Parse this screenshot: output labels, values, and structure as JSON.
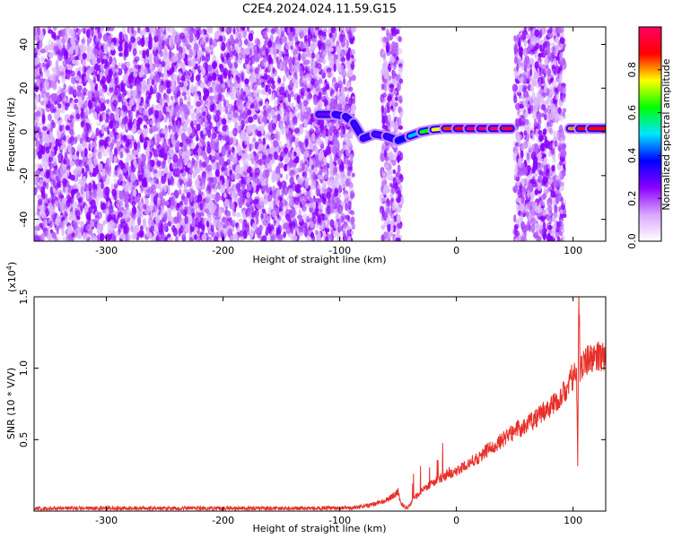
{
  "title": "C2E4.2024.024.11.59.G15",
  "chart_data": [
    {
      "type": "heatmap",
      "xlabel": "Height of straight line (km)",
      "ylabel": "Frequency (Hz)",
      "xlim": [
        -362,
        128
      ],
      "ylim": [
        -50,
        48
      ],
      "xticks": [
        -300,
        -200,
        -100,
        0,
        100
      ],
      "xtick_labels": [
        "-300",
        "-200",
        "-100",
        "0",
        "100"
      ],
      "yticks": [
        -40,
        -20,
        0,
        20,
        40
      ],
      "ytick_labels": [
        "-40",
        "-20",
        "0",
        "20",
        "40"
      ],
      "colorbar": {
        "label": "Normalized spectral amplitude",
        "range": [
          0,
          1
        ],
        "ticks": [
          0.0,
          0.2,
          0.4,
          0.6,
          0.8
        ],
        "tick_labels": [
          "0.0",
          "0.2",
          "0.4",
          "0.6",
          "0.8"
        ],
        "colormap": [
          "#ffffff",
          "#d9a6ff",
          "#8a00ff",
          "#0000ff",
          "#00e6ff",
          "#00ff00",
          "#ffff00",
          "#ff0000",
          "#ff0066"
        ]
      },
      "noise_regions_km": [
        [
          -362,
          -88
        ],
        [
          -64,
          -47
        ],
        [
          50,
          93
        ]
      ],
      "signal_ridge": [
        {
          "x": -118,
          "f": 8,
          "amp": 0.25
        },
        {
          "x": -104,
          "f": 8,
          "amp": 0.3
        },
        {
          "x": -95,
          "f": 7,
          "amp": 0.35
        },
        {
          "x": -88,
          "f": 4,
          "amp": 0.3
        },
        {
          "x": -80,
          "f": -3,
          "amp": 0.35
        },
        {
          "x": -70,
          "f": -1,
          "amp": 0.3
        },
        {
          "x": -60,
          "f": -2,
          "amp": 0.3
        },
        {
          "x": -50,
          "f": -4,
          "amp": 0.35
        },
        {
          "x": -40,
          "f": -2,
          "amp": 0.4
        },
        {
          "x": -30,
          "f": 0,
          "amp": 0.55
        },
        {
          "x": -20,
          "f": 1,
          "amp": 0.7
        },
        {
          "x": -10,
          "f": 1.5,
          "amp": 0.8
        },
        {
          "x": 0,
          "f": 1.5,
          "amp": 0.9
        },
        {
          "x": 10,
          "f": 1.5,
          "amp": 0.95
        },
        {
          "x": 20,
          "f": 1.5,
          "amp": 1.0
        },
        {
          "x": 30,
          "f": 1.5,
          "amp": 1.0
        },
        {
          "x": 40,
          "f": 1.5,
          "amp": 1.0
        },
        {
          "x": 47,
          "f": 1.5,
          "amp": 0.9
        },
        {
          "x": 97,
          "f": 1.5,
          "amp": 0.7
        },
        {
          "x": 105,
          "f": 1.5,
          "amp": 0.9
        },
        {
          "x": 115,
          "f": 1.5,
          "amp": 0.9
        },
        {
          "x": 128,
          "f": 1.5,
          "amp": 0.85
        }
      ]
    },
    {
      "type": "line",
      "xlabel": "Height of straight line (km)",
      "ylabel": "SNR (10 * V/V)",
      "y_scale_label": "(x10",
      "y_scale_exponent": "4",
      "y_scale_close": ")",
      "xlim": [
        -362,
        128
      ],
      "ylim": [
        0,
        1.5
      ],
      "y_multiplier": 10000,
      "xticks": [
        -300,
        -200,
        -100,
        0,
        100
      ],
      "xtick_labels": [
        "-300",
        "-200",
        "-100",
        "0",
        "100"
      ],
      "yticks": [
        0.5,
        1.0,
        1.5
      ],
      "ytick_labels": [
        "0.5",
        "1.0",
        "1.5"
      ],
      "color": "#e8302a",
      "series": [
        {
          "x": [
            -362,
            -300,
            -200,
            -150,
            -100,
            -80,
            -70,
            -60,
            -55,
            -52,
            -50,
            -48,
            -45,
            -42,
            -40,
            -35,
            -30,
            -25,
            -20,
            -15,
            -10,
            -5,
            0,
            10,
            20,
            30,
            40,
            50,
            60,
            70,
            80,
            90,
            95,
            100,
            103,
            104,
            105,
            106,
            108,
            110,
            115,
            120,
            128
          ],
          "y": [
            0.02,
            0.02,
            0.02,
            0.02,
            0.02,
            0.03,
            0.05,
            0.08,
            0.1,
            0.12,
            0.14,
            0.06,
            0.03,
            0.02,
            0.05,
            0.1,
            0.14,
            0.17,
            0.2,
            0.22,
            0.24,
            0.26,
            0.28,
            0.33,
            0.38,
            0.45,
            0.5,
            0.56,
            0.61,
            0.66,
            0.73,
            0.8,
            0.87,
            0.95,
            1.0,
            0.35,
            1.5,
            1.0,
            1.0,
            1.05,
            1.07,
            1.08,
            1.09
          ]
        }
      ]
    }
  ]
}
